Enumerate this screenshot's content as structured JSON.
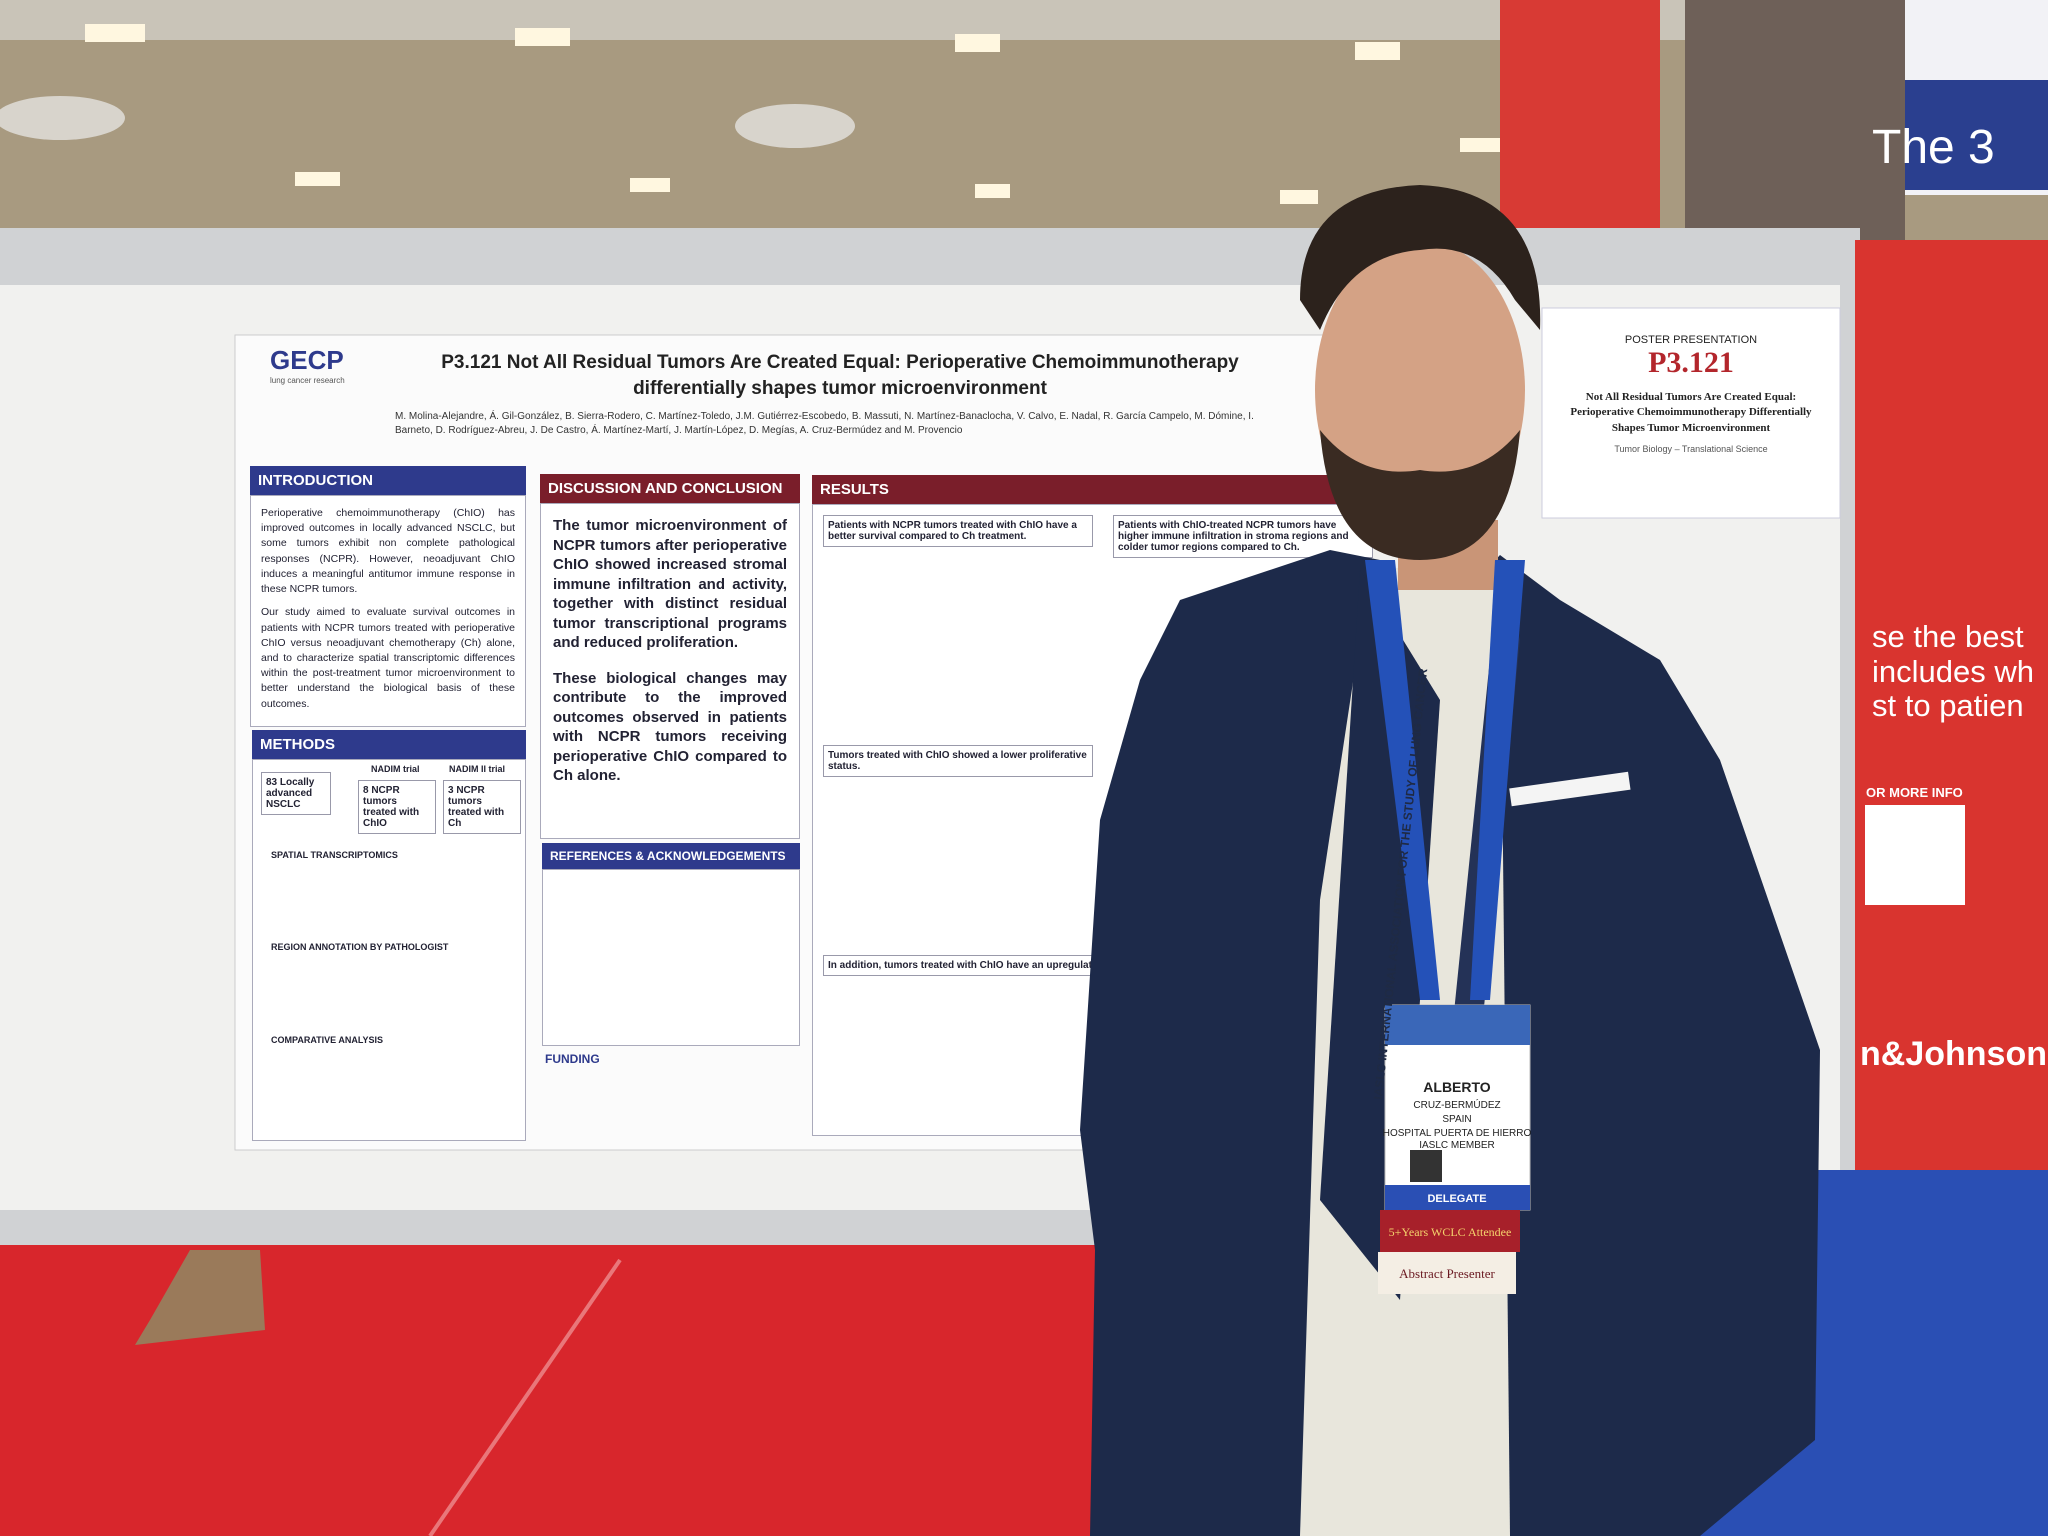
{
  "poster": {
    "logo": "GECP",
    "logo_sub": "lung cancer research",
    "title": "P3.121 Not All Residual Tumors Are Created Equal: Perioperative Chemoimmunotherapy differentially shapes tumor microenvironment",
    "authors": "M. Molina-Alejandre, Á. Gil-González, B. Sierra-Rodero, C. Martínez-Toledo, J.M. Gutiérrez-Escobedo, B. Massuti, N. Martínez-Banaclocha, V. Calvo, E. Nadal, R. García Campelo, M. Dómine, I. Barneto, D. Rodríguez-Abreu, J. De Castro, Á. Martínez-Martí, J. Martín-López, D. Megías, A. Cruz-Bermúdez and M. Provencio",
    "sections": {
      "introduction": {
        "heading": "INTRODUCTION",
        "text": [
          "Perioperative chemoimmunotherapy (ChIO) has improved outcomes in locally advanced NSCLC, but some tumors exhibit non complete pathological responses (NCPR). However, neoadjuvant ChIO induces a meaningful antitumor immune response in these NCPR tumors.",
          "Our study aimed to evaluate survival outcomes in patients with NCPR tumors treated with perioperative ChIO versus neoadjuvant chemotherapy (Ch) alone, and to characterize spatial transcriptomic differences within the post-treatment tumor microenvironment to better understand the biological basis of these outcomes."
        ]
      },
      "discussion": {
        "heading": "DISCUSSION AND CONCLUSION",
        "text": [
          "The tumor microenvironment of NCPR tumors after perioperative ChIO showed increased stromal immune infiltration and activity, together with distinct residual tumor transcriptional programs and reduced proliferation.",
          "These biological changes may contribute to the improved outcomes observed in patients with NCPR tumors receiving perioperative ChIO compared to Ch alone."
        ]
      },
      "results": {
        "heading": "RESULTS",
        "findings": [
          "Patients with NCPR tumors treated with ChIO have a better survival compared to Ch treatment.",
          "Patients with ChIO-treated NCPR tumors have higher immune infiltration in stroma regions and colder tumor regions compared to Ch.",
          "Tumors treated with ChIO showed a lower proliferative status.",
          "In addition, tumors treated with ChIO have an upregulation of a"
        ]
      },
      "methods": {
        "heading": "METHODS",
        "cohort": "83 Locally advanced NSCLC",
        "trial1": "NADIM trial",
        "trial1_box": "8 NCPR tumors treated with ChIO",
        "trial2": "NADIM II trial",
        "trial2_box": "3 NCPR tumors treated with Ch",
        "steps": [
          "SPATIAL TRANSCRIPTOMICS",
          "REGION ANNOTATION BY PATHOLOGIST",
          "COMPARATIVE ANALYSIS"
        ]
      },
      "references": {
        "heading": "REFERENCES & ACKNOWLEDGEMENTS"
      },
      "funding": {
        "heading": "FUNDING"
      }
    }
  },
  "sign": {
    "label": "POSTER PRESENTATION",
    "code": "P3.121",
    "title": "Not All Residual Tumors Are Created Equal: Perioperative Chemoimmunotherapy Differentially Shapes Tumor Microenvironment",
    "track": "Tumor Biology – Translational Science"
  },
  "badge": {
    "first_name": "ALBERTO",
    "last_name": "CRUZ-BERMÚDEZ",
    "country": "SPAIN",
    "institution": "HOSPITAL PUERTA DE HIERRO",
    "membership": "IASLC MEMBER",
    "role": "DELEGATE",
    "ribbons": [
      "5+Years WCLC Attendee",
      "Abstract Presenter"
    ]
  },
  "lanyard": "IASLC INTERNATIONAL ASSOCIATION FOR THE STUDY OF LUNG CANCER",
  "banner": {
    "top": "The 3",
    "lines": [
      "se the best",
      "includes wh",
      "st to patien"
    ],
    "info": "OR MORE INFO",
    "brand": "n&Johnson"
  }
}
